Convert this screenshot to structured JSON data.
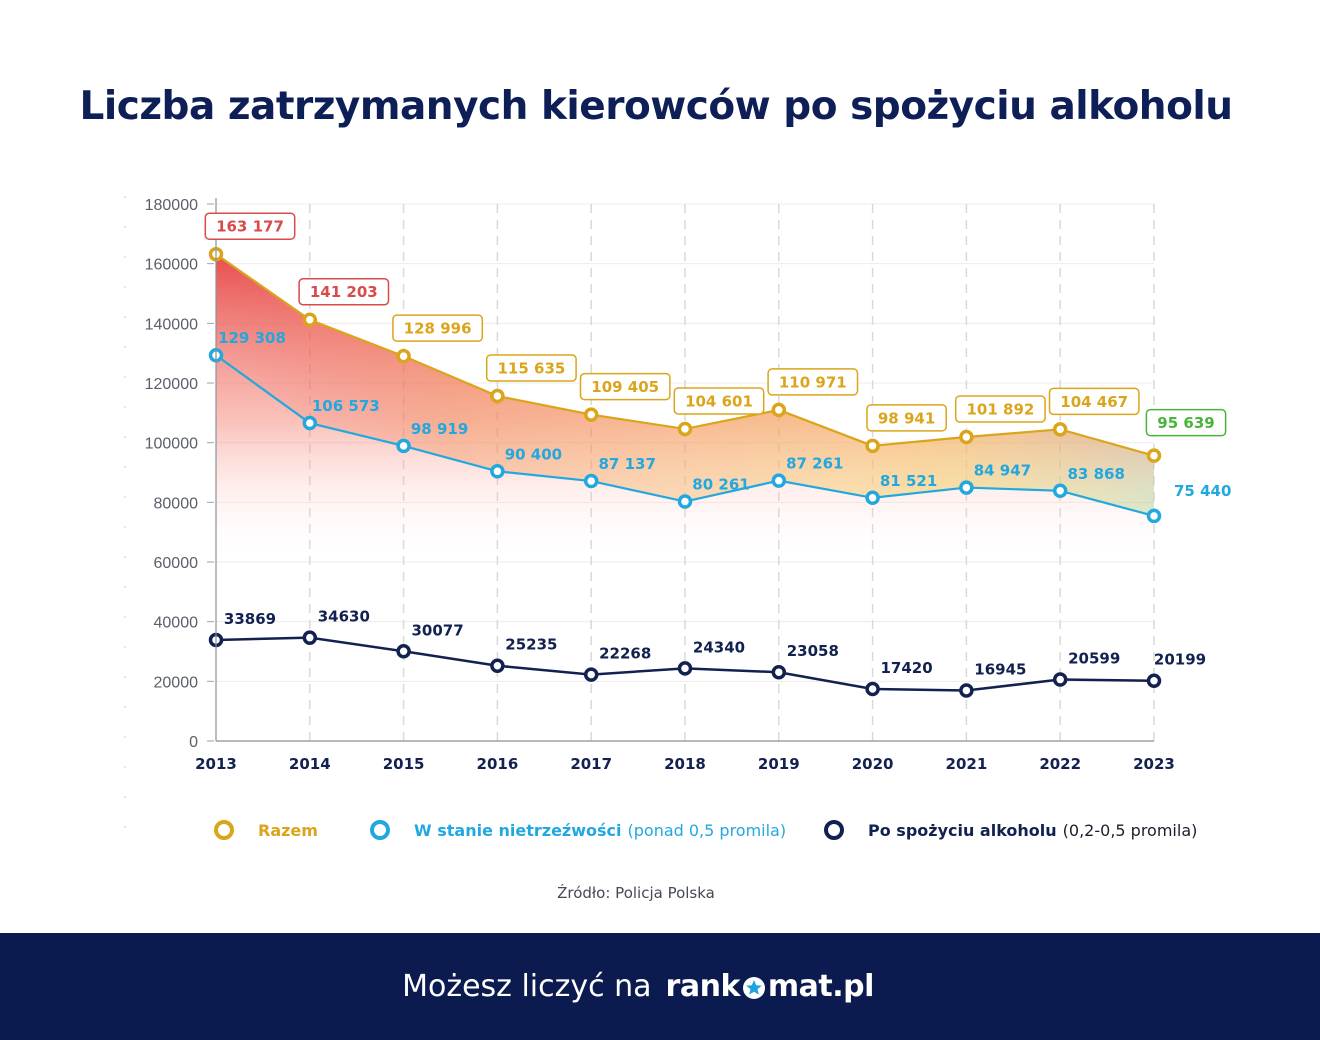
{
  "title": "Liczba zatrzymanych kierowców po spożyciu alkoholu",
  "chart_data": {
    "type": "line",
    "title": "Liczba zatrzymanych kierowców po spożyciu alkoholu",
    "categories": [
      "2013",
      "2014",
      "2015",
      "2016",
      "2017",
      "2018",
      "2019",
      "2020",
      "2021",
      "2022",
      "2023"
    ],
    "ylim": [
      0,
      180000
    ],
    "yticks": [
      "0",
      "20000",
      "40000",
      "60000",
      "80000",
      "100000",
      "120000",
      "140000",
      "160000",
      "180000"
    ],
    "grid": true,
    "series": [
      {
        "name": "Razem",
        "color": "#dba51b",
        "values": [
          163177,
          141203,
          128996,
          115635,
          109405,
          104601,
          110971,
          98941,
          101892,
          104467,
          95639
        ],
        "labels": [
          "163 177",
          "141 203",
          "128 996",
          "115 635",
          "109 405",
          "104 601",
          "110 971",
          "98 941",
          "101 892",
          "104 467",
          "95 639"
        ],
        "label_colors": [
          "#d94a4a",
          "#d94a4a",
          "#dba51b",
          "#dba51b",
          "#dba51b",
          "#dba51b",
          "#dba51b",
          "#dba51b",
          "#dba51b",
          "#dba51b",
          "#49b43a"
        ]
      },
      {
        "name": "W stanie nietrzeźwości",
        "color": "#22a8df",
        "values": [
          129308,
          106573,
          98919,
          90400,
          87137,
          80261,
          87261,
          81521,
          84947,
          83868,
          75440
        ],
        "labels": [
          "129 308",
          "106 573",
          "98 919",
          "90 400",
          "87 137",
          "80 261",
          "87 261",
          "81 521",
          "84 947",
          "83 868",
          "75 440"
        ]
      },
      {
        "name": "Po spożyciu alkoholu",
        "color": "#12214f",
        "values": [
          33869,
          34630,
          30077,
          25235,
          22268,
          24340,
          23058,
          17420,
          16945,
          20599,
          20199
        ],
        "labels": [
          "33869",
          "34630",
          "30077",
          "25235",
          "22268",
          "24340",
          "23058",
          "17420",
          "16945",
          "20599",
          "20199"
        ]
      }
    ]
  },
  "legend": [
    {
      "name": "Razem",
      "sub": "",
      "color": "#dba51b"
    },
    {
      "name": "W stanie nietrzeźwości",
      "sub": "(ponad 0,5 promila)",
      "color": "#22a8df"
    },
    {
      "name": "Po spożyciu alkoholu",
      "sub": "(0,2-0,5 promila)",
      "color": "#12214f"
    }
  ],
  "source": "Źródło: Policja Polska",
  "footer": {
    "text": "Możesz liczyć na",
    "brand_pre": "rank",
    "brand_post": "mat.pl"
  }
}
